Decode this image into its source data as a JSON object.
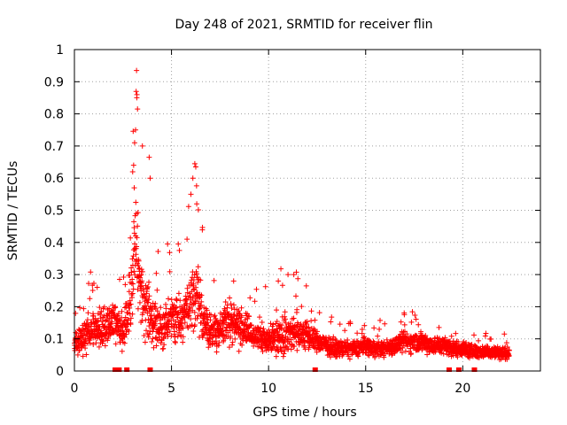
{
  "chart_data": {
    "type": "scatter",
    "title": "Day 248 of 2021, SRMTID for receiver flin",
    "xlabel": "GPS time / hours",
    "ylabel": "SRMTID / TECUs",
    "xlim": [
      0,
      24
    ],
    "ylim": [
      0,
      1
    ],
    "xticks": [
      0,
      5,
      10,
      15,
      20
    ],
    "yticks": [
      0,
      0.1,
      0.2,
      0.3,
      0.4,
      0.5,
      0.6,
      0.7,
      0.8,
      0.9,
      1
    ],
    "xtick_labels": [
      "0",
      "5",
      "10",
      "15",
      "20"
    ],
    "ytick_labels": [
      "0",
      "0.1",
      "0.2",
      "0.3",
      "0.4",
      "0.5",
      "0.6",
      "0.7",
      "0.8",
      "0.9",
      "1"
    ],
    "grid": true,
    "marker": "+",
    "series_color": "#ff0000",
    "envelope": {
      "x": [
        0,
        0.5,
        1,
        1.5,
        2,
        2.5,
        2.8,
        3.0,
        3.2,
        3.5,
        4,
        4.5,
        5,
        5.5,
        6,
        6.3,
        6.7,
        7,
        7.5,
        8,
        8.5,
        9,
        9.5,
        10,
        10.5,
        11,
        11.5,
        12,
        12.5,
        13,
        13.5,
        14,
        14.5,
        15,
        15.5,
        16,
        16.5,
        17,
        17.5,
        18,
        18.5,
        19,
        19.5,
        20,
        20.5,
        21,
        21.5,
        22,
        22.4
      ],
      "median": [
        0.08,
        0.11,
        0.13,
        0.14,
        0.15,
        0.12,
        0.18,
        0.3,
        0.38,
        0.22,
        0.16,
        0.14,
        0.16,
        0.17,
        0.2,
        0.25,
        0.15,
        0.12,
        0.13,
        0.16,
        0.14,
        0.12,
        0.1,
        0.1,
        0.11,
        0.12,
        0.12,
        0.11,
        0.09,
        0.08,
        0.07,
        0.07,
        0.07,
        0.08,
        0.07,
        0.07,
        0.08,
        0.09,
        0.09,
        0.09,
        0.08,
        0.08,
        0.07,
        0.07,
        0.06,
        0.06,
        0.06,
        0.055,
        0.055
      ],
      "spread": [
        0.05,
        0.07,
        0.09,
        0.09,
        0.09,
        0.08,
        0.12,
        0.2,
        0.25,
        0.14,
        0.1,
        0.09,
        0.1,
        0.11,
        0.14,
        0.16,
        0.09,
        0.07,
        0.08,
        0.1,
        0.09,
        0.07,
        0.06,
        0.07,
        0.08,
        0.09,
        0.08,
        0.07,
        0.05,
        0.04,
        0.035,
        0.035,
        0.035,
        0.04,
        0.035,
        0.035,
        0.04,
        0.045,
        0.045,
        0.045,
        0.04,
        0.04,
        0.035,
        0.035,
        0.03,
        0.03,
        0.03,
        0.025,
        0.025
      ]
    },
    "peaks": [
      {
        "x": 3.2,
        "y": 0.935
      },
      {
        "x": 3.18,
        "y": 0.87
      },
      {
        "x": 3.22,
        "y": 0.86
      },
      {
        "x": 3.25,
        "y": 0.815
      },
      {
        "x": 3.15,
        "y": 0.75
      },
      {
        "x": 3.1,
        "y": 0.71
      },
      {
        "x": 3.05,
        "y": 0.64
      },
      {
        "x": 3.0,
        "y": 0.62
      },
      {
        "x": 3.08,
        "y": 0.57
      },
      {
        "x": 3.5,
        "y": 0.7
      },
      {
        "x": 3.85,
        "y": 0.665
      },
      {
        "x": 3.9,
        "y": 0.6
      },
      {
        "x": 6.2,
        "y": 0.645
      },
      {
        "x": 6.25,
        "y": 0.635
      },
      {
        "x": 6.1,
        "y": 0.6
      },
      {
        "x": 6.0,
        "y": 0.55
      },
      {
        "x": 6.3,
        "y": 0.52
      },
      {
        "x": 5.8,
        "y": 0.41
      },
      {
        "x": 4.8,
        "y": 0.395
      },
      {
        "x": 5.35,
        "y": 0.395
      },
      {
        "x": 11.0,
        "y": 0.3
      },
      {
        "x": 11.3,
        "y": 0.3
      },
      {
        "x": 10.5,
        "y": 0.28
      },
      {
        "x": 8.2,
        "y": 0.28
      }
    ],
    "gap_markers_x": [
      2.1,
      2.3,
      2.7,
      3.9,
      12.4,
      19.3,
      19.8,
      20.6
    ]
  }
}
